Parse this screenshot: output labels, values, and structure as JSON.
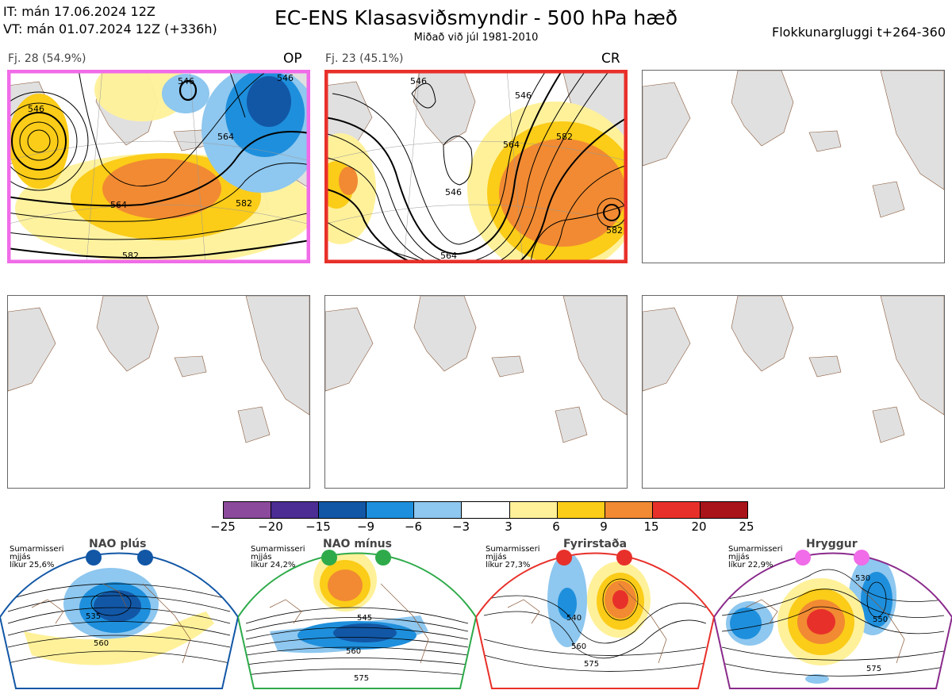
{
  "header": {
    "it_line": "IT: mán 17.06.2024 12Z",
    "vt_line": "VT: mán 01.07.2024 12Z  (+336h)",
    "title": "EC-ENS Klasasviðsmyndir - 500 hPa hæð",
    "subtitle": "Miðað við júl 1981-2010",
    "window_label": "Flokkunargluggi t+264-360"
  },
  "clusters": [
    {
      "label": "Fj. 28 (54.9%)",
      "tag": "OP",
      "border_color": "#f06ce8",
      "contour_labels": [
        "546",
        "546",
        "546",
        "564",
        "564",
        "582",
        "582"
      ]
    },
    {
      "label": "Fj. 23 (45.1%)",
      "tag": "CR",
      "border_color": "#e8302a",
      "contour_labels": [
        "546",
        "546",
        "546",
        "564",
        "564",
        "582",
        "582"
      ]
    }
  ],
  "colorbar": {
    "ticks": [
      "−25",
      "−20",
      "−15",
      "−9",
      "−6",
      "−3",
      "3",
      "6",
      "9",
      "15",
      "20",
      "25"
    ],
    "colors": [
      "#8c4a9c",
      "#4b2d94",
      "#1257a6",
      "#1e8fdc",
      "#8ec7ef",
      "#ffffff",
      "#fff19a",
      "#fbcc18",
      "#f18a32",
      "#e8302a",
      "#a8141a"
    ]
  },
  "regimes": [
    {
      "name": "NAO plús",
      "line1": "Sumarmisseri",
      "line2": "mjjás",
      "line3": "líkur 25,6%",
      "color": "#1257a6",
      "contour_labels": [
        "535",
        "560"
      ]
    },
    {
      "name": "NAO mínus",
      "line1": "Sumarmisseri",
      "line2": "mjjás",
      "line3": "líkur 24,2%",
      "color": "#2eaa4a",
      "contour_labels": [
        "545",
        "560",
        "575"
      ]
    },
    {
      "name": "Fyrirstaða",
      "line1": "Sumarmisseri",
      "line2": "mjjás",
      "line3": "líkur 27,3%",
      "color": "#e8302a",
      "contour_labels": [
        "540",
        "560",
        "575"
      ]
    },
    {
      "name": "Hryggur",
      "line1": "Sumarmisseri",
      "line2": "mjjás",
      "line3": "líkur 22,9%",
      "color": "#8a2a8c",
      "contour_labels": [
        "530",
        "550",
        "575"
      ]
    }
  ]
}
